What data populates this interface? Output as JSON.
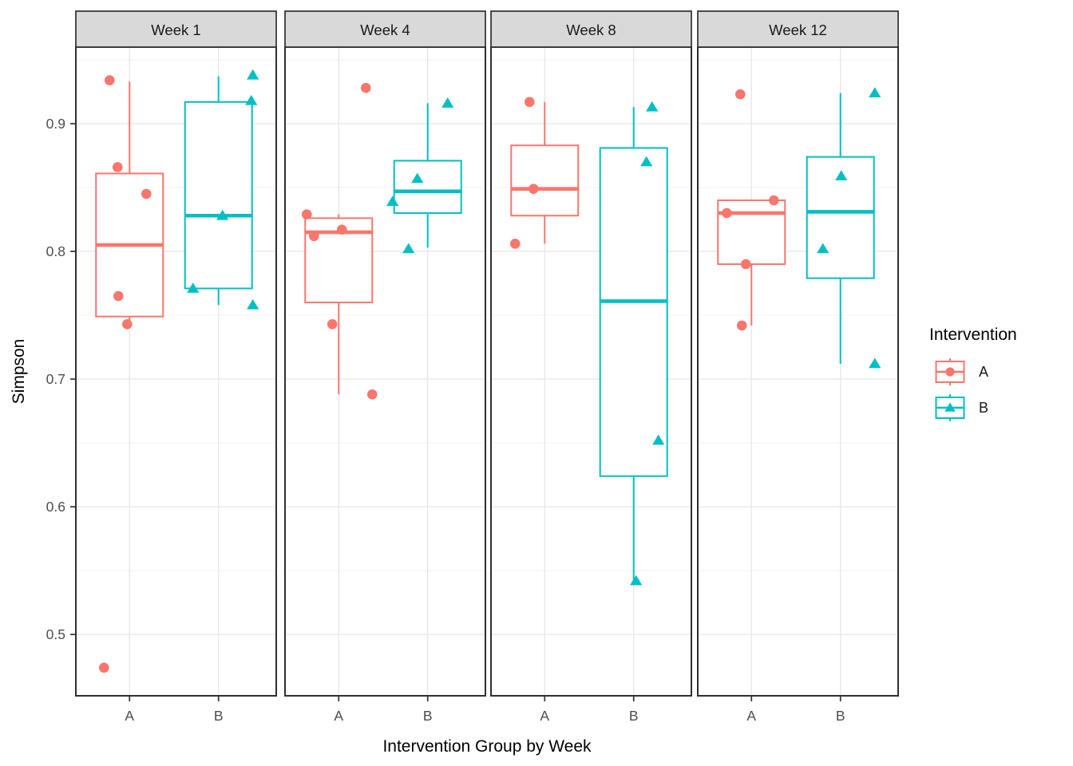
{
  "legend": {
    "title": "Intervention",
    "items": [
      {
        "label": "A",
        "color": "#F8766D",
        "shape": "circle"
      },
      {
        "label": "B",
        "color": "#00BFC4",
        "shape": "triangle"
      }
    ]
  },
  "theme": {
    "group_a_color": "#F8766D",
    "group_b_color": "#00BFC4",
    "strip_bg": "#D9D9D9",
    "panel_bg": "#FFFFFF",
    "grid_major": "#E8E8E8",
    "grid_minor": "#F2F2F2",
    "panel_border": "#2F2F2F",
    "tick_color": "#333333",
    "axis_text": "#4D4D4D"
  },
  "chart_data": {
    "type": "boxplot",
    "title": "",
    "xlabel": "Intervention Group by Week",
    "ylabel": "Simpson",
    "ylim": [
      0.452,
      0.96
    ],
    "y_major_ticks": [
      0.5,
      0.6,
      0.7,
      0.8,
      0.9
    ],
    "y_minor_gridlines": [
      0.45,
      0.55,
      0.65,
      0.75,
      0.85,
      0.95
    ],
    "x_categories": [
      "A",
      "B"
    ],
    "legend_position": "right",
    "grid": true,
    "facets": [
      {
        "label": "Week 1",
        "groups": [
          {
            "name": "A",
            "shape": "circle",
            "color": "#F8766D",
            "box": {
              "whisker_low": 0.743,
              "q1": 0.749,
              "median": 0.805,
              "q3": 0.861,
              "whisker_high": 0.933
            },
            "points": [
              {
                "dx": -25,
                "v": 0.934
              },
              {
                "dx": -15,
                "v": 0.866
              },
              {
                "dx": 21,
                "v": 0.845
              },
              {
                "dx": -14,
                "v": 0.765
              },
              {
                "dx": -3,
                "v": 0.743
              },
              {
                "dx": -32,
                "v": 0.474
              }
            ]
          },
          {
            "name": "B",
            "shape": "triangle",
            "color": "#00BFC4",
            "box": {
              "whisker_low": 0.758,
              "q1": 0.771,
              "median": 0.828,
              "q3": 0.917,
              "whisker_high": 0.937
            },
            "points": [
              {
                "dx": 43,
                "v": 0.938
              },
              {
                "dx": 41,
                "v": 0.918
              },
              {
                "dx": 5,
                "v": 0.828
              },
              {
                "dx": -32,
                "v": 0.771
              },
              {
                "dx": 43,
                "v": 0.758
              }
            ]
          }
        ]
      },
      {
        "label": "Week 4",
        "groups": [
          {
            "name": "A",
            "shape": "circle",
            "color": "#F8766D",
            "box": {
              "whisker_low": 0.688,
              "q1": 0.76,
              "median": 0.815,
              "q3": 0.826,
              "whisker_high": 0.829
            },
            "points": [
              {
                "dx": 34,
                "v": 0.928
              },
              {
                "dx": -40,
                "v": 0.829
              },
              {
                "dx": 4,
                "v": 0.817
              },
              {
                "dx": -31,
                "v": 0.812
              },
              {
                "dx": -8,
                "v": 0.743
              },
              {
                "dx": 42,
                "v": 0.688
              }
            ]
          },
          {
            "name": "B",
            "shape": "triangle",
            "color": "#00BFC4",
            "box": {
              "whisker_low": 0.803,
              "q1": 0.83,
              "median": 0.847,
              "q3": 0.871,
              "whisker_high": 0.916
            },
            "points": [
              {
                "dx": 25,
                "v": 0.916
              },
              {
                "dx": -13,
                "v": 0.857
              },
              {
                "dx": -44,
                "v": 0.839
              },
              {
                "dx": -24,
                "v": 0.802
              }
            ]
          }
        ]
      },
      {
        "label": "Week 8",
        "groups": [
          {
            "name": "A",
            "shape": "circle",
            "color": "#F8766D",
            "box": {
              "whisker_low": 0.806,
              "q1": 0.828,
              "median": 0.849,
              "q3": 0.883,
              "whisker_high": 0.917
            },
            "points": [
              {
                "dx": -19,
                "v": 0.917
              },
              {
                "dx": -14,
                "v": 0.849
              },
              {
                "dx": -37,
                "v": 0.806
              }
            ]
          },
          {
            "name": "B",
            "shape": "triangle",
            "color": "#00BFC4",
            "box": {
              "whisker_low": 0.542,
              "q1": 0.624,
              "median": 0.761,
              "q3": 0.881,
              "whisker_high": 0.913
            },
            "points": [
              {
                "dx": 23,
                "v": 0.913
              },
              {
                "dx": 16,
                "v": 0.87
              },
              {
                "dx": 31,
                "v": 0.652
              },
              {
                "dx": 3,
                "v": 0.542
              }
            ]
          }
        ]
      },
      {
        "label": "Week 12",
        "groups": [
          {
            "name": "A",
            "shape": "circle",
            "color": "#F8766D",
            "box": {
              "whisker_low": 0.742,
              "q1": 0.79,
              "median": 0.83,
              "q3": 0.84,
              "whisker_high": 0.84
            },
            "points": [
              {
                "dx": -14,
                "v": 0.923
              },
              {
                "dx": 28,
                "v": 0.84
              },
              {
                "dx": -31,
                "v": 0.83
              },
              {
                "dx": -7,
                "v": 0.79
              },
              {
                "dx": -12,
                "v": 0.742
              }
            ]
          },
          {
            "name": "B",
            "shape": "triangle",
            "color": "#00BFC4",
            "box": {
              "whisker_low": 0.712,
              "q1": 0.779,
              "median": 0.831,
              "q3": 0.874,
              "whisker_high": 0.924
            },
            "points": [
              {
                "dx": 43,
                "v": 0.924
              },
              {
                "dx": 1,
                "v": 0.859
              },
              {
                "dx": -22,
                "v": 0.802
              },
              {
                "dx": 43,
                "v": 0.712
              }
            ]
          }
        ]
      }
    ]
  }
}
